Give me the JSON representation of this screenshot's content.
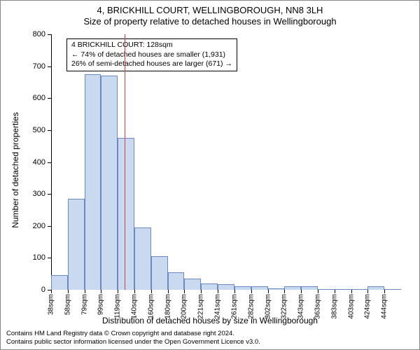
{
  "title_line1": "4, BRICKHILL COURT, WELLINGBOROUGH, NN8 3LH",
  "title_line2": "Size of property relative to detached houses in Wellingborough",
  "y_axis_label": "Number of detached properties",
  "x_axis_label": "Distribution of detached houses by size in Wellingborough",
  "chart": {
    "type": "histogram",
    "ylim": [
      0,
      800
    ],
    "ytick_step": 100,
    "bar_fill": "#c9daf0",
    "bar_stroke": "#6a8abf",
    "bar_stroke_width": 1,
    "marker_color": "#d04040",
    "axis_color": "#000000",
    "background": "#ffffff",
    "x_start": 38,
    "x_step": 20.4,
    "bars": [
      {
        "x_label": "38sqm",
        "value": 45
      },
      {
        "x_label": "58sqm",
        "value": 285
      },
      {
        "x_label": "79sqm",
        "value": 675
      },
      {
        "x_label": "99sqm",
        "value": 670
      },
      {
        "x_label": "119sqm",
        "value": 475
      },
      {
        "x_label": "140sqm",
        "value": 195
      },
      {
        "x_label": "160sqm",
        "value": 105
      },
      {
        "x_label": "180sqm",
        "value": 55
      },
      {
        "x_label": "200sqm",
        "value": 35
      },
      {
        "x_label": "221sqm",
        "value": 20
      },
      {
        "x_label": "241sqm",
        "value": 18
      },
      {
        "x_label": "261sqm",
        "value": 12
      },
      {
        "x_label": "282sqm",
        "value": 12
      },
      {
        "x_label": "302sqm",
        "value": 5
      },
      {
        "x_label": "322sqm",
        "value": 10
      },
      {
        "x_label": "343sqm",
        "value": 12
      },
      {
        "x_label": "363sqm",
        "value": 2
      },
      {
        "x_label": "383sqm",
        "value": 3
      },
      {
        "x_label": "403sqm",
        "value": 0
      },
      {
        "x_label": "424sqm",
        "value": 12
      },
      {
        "x_label": "444sqm",
        "value": 0
      }
    ],
    "marker_value_sqm": 128,
    "annotation_lines": [
      "4 BRICKHILL COURT: 128sqm",
      "← 74% of detached houses are smaller (1,931)",
      "26% of semi-detached houses are larger (671) →"
    ]
  },
  "footer_line1": "Contains HM Land Registry data © Crown copyright and database right 2024.",
  "footer_line2": "Contains public sector information licensed under the Open Government Licence v3.0."
}
